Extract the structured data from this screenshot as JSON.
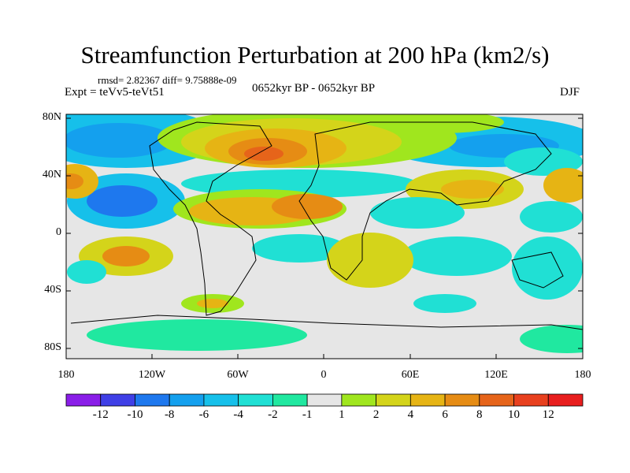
{
  "title": "Streamfunction Perturbation at 200 hPa (km2/s)",
  "stats": "rmsd= 2.82367 diff= 9.75888e-09",
  "experiment": "Expt = teVv5-teVt51",
  "period": "0652kyr BP - 0652kyr BP",
  "season": "DJF",
  "lat_ticks": [
    "80N",
    "40N",
    "0",
    "40S",
    "80S"
  ],
  "lon_ticks": [
    "180",
    "120W",
    "60W",
    "0",
    "60E",
    "120E",
    "180"
  ],
  "colorbar": {
    "labels": [
      "-12",
      "-10",
      "-8",
      "-6",
      "-4",
      "-2",
      "-1",
      "1",
      "2",
      "4",
      "6",
      "8",
      "10",
      "12"
    ],
    "colors": [
      "#8a1ee8",
      "#3f3fe6",
      "#1e78ee",
      "#14a0ee",
      "#16c0ea",
      "#20e0d4",
      "#20e8a0",
      "#e6e6e6",
      "#a0e61e",
      "#d4d41a",
      "#e6b414",
      "#e68c14",
      "#e6641a",
      "#e8401e",
      "#e81e1e"
    ]
  }
}
